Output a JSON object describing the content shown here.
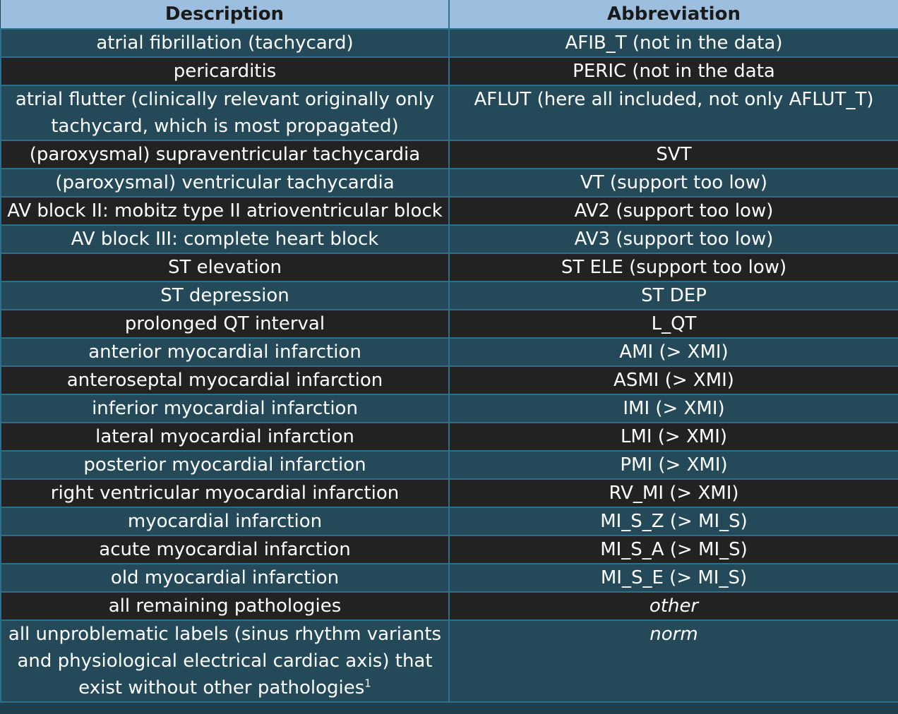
{
  "table": {
    "headers": [
      "Description",
      "Abbreviation"
    ],
    "rows": [
      {
        "description": "atrial fibrillation (tachycard)",
        "abbreviation": "AFIB_T (not in the data)"
      },
      {
        "description": "pericarditis",
        "abbreviation": "PERIC (not in the data"
      },
      {
        "description": "atrial flutter (clinically relevant originally only tachycard, which is most propagated)",
        "abbreviation": "AFLUT (here all included, not only AFLUT_T)"
      },
      {
        "description": "(paroxysmal) supraventricular tachycardia",
        "abbreviation": "SVT"
      },
      {
        "description": "(paroxysmal) ventricular tachycardia",
        "abbreviation": "VT (support too low)"
      },
      {
        "description": "AV block II: mobitz type II atrioventricular block",
        "abbreviation": "AV2 (support too low)"
      },
      {
        "description": "AV block III: complete heart block",
        "abbreviation": "AV3 (support too low)"
      },
      {
        "description": "ST elevation",
        "abbreviation": "ST ELE (support too low)"
      },
      {
        "description": "ST depression",
        "abbreviation": "ST DEP"
      },
      {
        "description": "prolonged QT interval",
        "abbreviation": "L_QT"
      },
      {
        "description": "anterior myocardial infarction",
        "abbreviation": "AMI (> XMI)"
      },
      {
        "description": "anteroseptal myocardial infarction",
        "abbreviation": "ASMI (> XMI)"
      },
      {
        "description": "inferior myocardial infarction",
        "abbreviation": "IMI (> XMI)"
      },
      {
        "description": "lateral myocardial infarction",
        "abbreviation": "LMI (> XMI)"
      },
      {
        "description": "posterior myocardial infarction",
        "abbreviation": "PMI (> XMI)"
      },
      {
        "description": "right ventricular myocardial infarction",
        "abbreviation": "RV_MI (> XMI)"
      },
      {
        "description": "myocardial infarction",
        "abbreviation": "MI_S_Z (> MI_S)"
      },
      {
        "description": "acute myocardial infarction",
        "abbreviation": "MI_S_A (> MI_S)"
      },
      {
        "description": "old myocardial infarction",
        "abbreviation": "MI_S_E (> MI_S)"
      },
      {
        "description": "all remaining pathologies",
        "abbreviation": "other"
      },
      {
        "description": "all unproblematic labels (sinus rhythm variants and physiological electrical cardiac axis) that exist without other pathologies",
        "footnote_mark": "1",
        "abbreviation": "norm"
      }
    ]
  }
}
